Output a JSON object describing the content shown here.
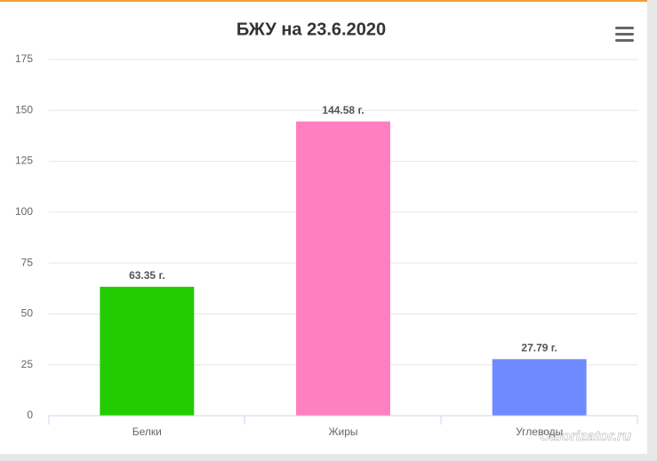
{
  "chart_data": {
    "type": "bar",
    "title": "БЖУ на 23.6.2020",
    "categories": [
      "Белки",
      "Жиры",
      "Углеводы"
    ],
    "values": [
      63.35,
      144.58,
      27.79
    ],
    "value_labels": [
      "63.35 г.",
      "144.58 г.",
      "27.79 г."
    ],
    "colors": [
      "#22cc00",
      "#ff80c0",
      "#6f8aff"
    ],
    "ylim": [
      0,
      175
    ],
    "yticks": [
      0,
      25,
      50,
      75,
      100,
      125,
      150,
      175
    ],
    "grid": true,
    "watermark": "Calorizator.ru"
  }
}
